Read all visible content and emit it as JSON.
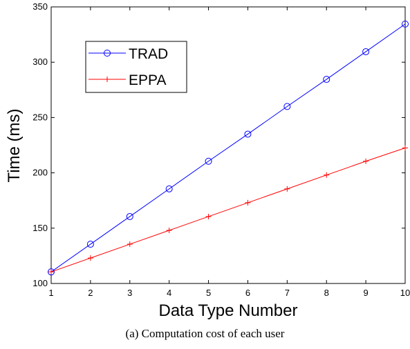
{
  "chart_data": {
    "type": "line",
    "title": "",
    "xlabel": "Data Type Number",
    "ylabel": "Time (ms)",
    "x": [
      1,
      2,
      3,
      4,
      5,
      6,
      7,
      8,
      9,
      10
    ],
    "xlim": [
      1,
      10
    ],
    "ylim": [
      100,
      350
    ],
    "xticks": [
      1,
      2,
      3,
      4,
      5,
      6,
      7,
      8,
      9,
      10
    ],
    "yticks": [
      100,
      150,
      200,
      250,
      300,
      350
    ],
    "grid": false,
    "legend_position": "top-left",
    "series": [
      {
        "name": "TRAD",
        "color": "#0000ff",
        "marker": "circle",
        "values": [
          110.5,
          135.5,
          160.5,
          185.5,
          210.5,
          235,
          260,
          284.5,
          309.5,
          334.5
        ]
      },
      {
        "name": "EPPA",
        "color": "#ff0000",
        "marker": "plus",
        "values": [
          110.5,
          123,
          135.5,
          148,
          160.5,
          173,
          185.5,
          198,
          210.5,
          222.5
        ]
      }
    ]
  },
  "caption": "(a) Computation cost of each user"
}
